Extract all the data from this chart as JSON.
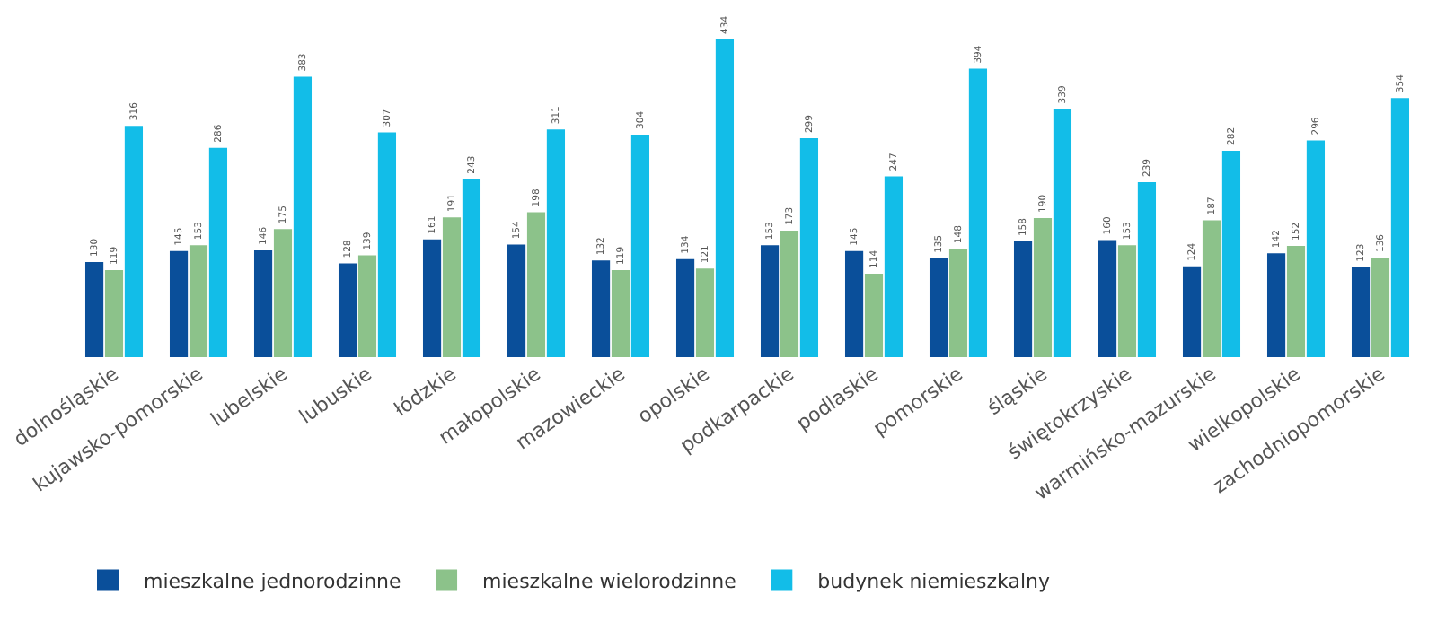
{
  "chart_data": {
    "type": "bar",
    "categories": [
      "dolnośląskie",
      "kujawsko-pomorskie",
      "lubelskie",
      "lubuskie",
      "łódzkie",
      "małopolskie",
      "mazowieckie",
      "opolskie",
      "podkarpackie",
      "podlaskie",
      "pomorskie",
      "śląskie",
      "świętokrzyskie",
      "warmińsko-mazurskie",
      "wielkopolskie",
      "zachodniopomorskie"
    ],
    "series": [
      {
        "name": "mieszkalne jednorodzinne",
        "color": "#0a4f9a",
        "values": [
          130,
          145,
          146,
          128,
          161,
          154,
          132,
          134,
          153,
          145,
          135,
          158,
          160,
          124,
          142,
          123
        ]
      },
      {
        "name": "mieszkalne wielorodzinne",
        "color": "#8cc28a",
        "values": [
          119,
          153,
          175,
          139,
          191,
          198,
          119,
          121,
          173,
          114,
          148,
          190,
          153,
          187,
          152,
          136
        ]
      },
      {
        "name": "budynek niemieszkalny",
        "color": "#12bde8",
        "values": [
          316,
          286,
          383,
          307,
          243,
          311,
          304,
          434,
          299,
          247,
          394,
          339,
          239,
          282,
          296,
          354
        ]
      }
    ],
    "data_labels": true,
    "legend": "bottom",
    "grid": false
  }
}
